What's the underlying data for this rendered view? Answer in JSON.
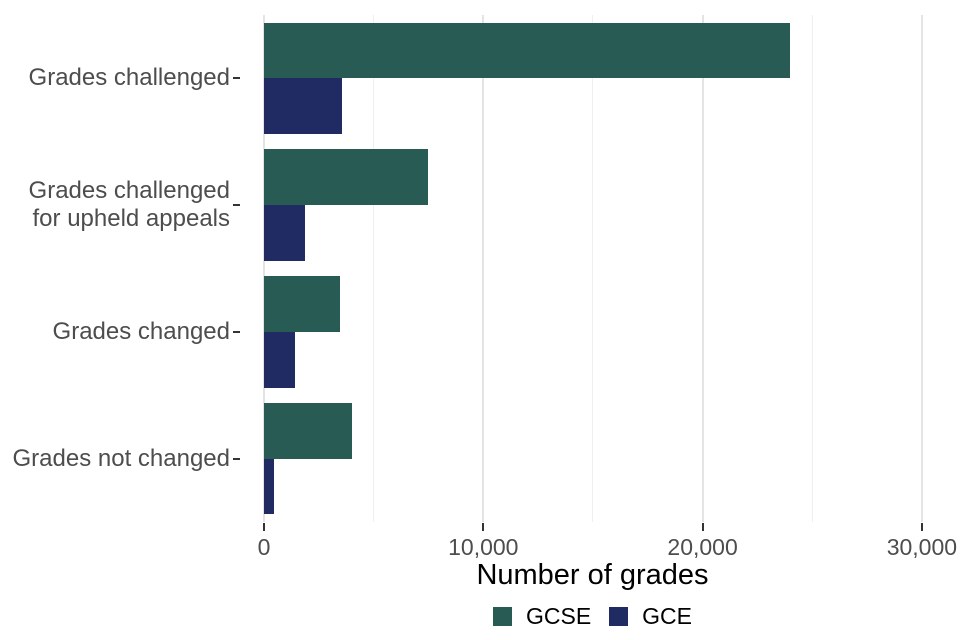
{
  "chart_data": {
    "type": "bar",
    "orientation": "horizontal",
    "title": "",
    "xlabel": "Number of grades",
    "ylabel": "",
    "categories": [
      "Grades challenged",
      "Grades challenged for upheld appeals",
      "Grades changed",
      "Grades not changed"
    ],
    "category_label_lines": [
      [
        "Grades challenged"
      ],
      [
        "Grades challenged",
        "for upheld appeals"
      ],
      [
        "Grades changed"
      ],
      [
        "Grades not changed"
      ]
    ],
    "series": [
      {
        "name": "GCSE",
        "color": "#285b53",
        "values": [
          24000,
          7480,
          3470,
          4020
        ]
      },
      {
        "name": "GCE",
        "color": "#212b63",
        "values": [
          3550,
          1870,
          1410,
          460
        ]
      }
    ],
    "xlim": [
      0,
      30000
    ],
    "x_ticks": [
      0,
      10000,
      20000,
      30000
    ],
    "x_tick_labels": [
      "0",
      "10,000",
      "20,000",
      "30,000"
    ],
    "x_minor_ticks": [
      5000,
      15000,
      25000
    ],
    "grid": "vertical",
    "legend_position": "bottom"
  }
}
